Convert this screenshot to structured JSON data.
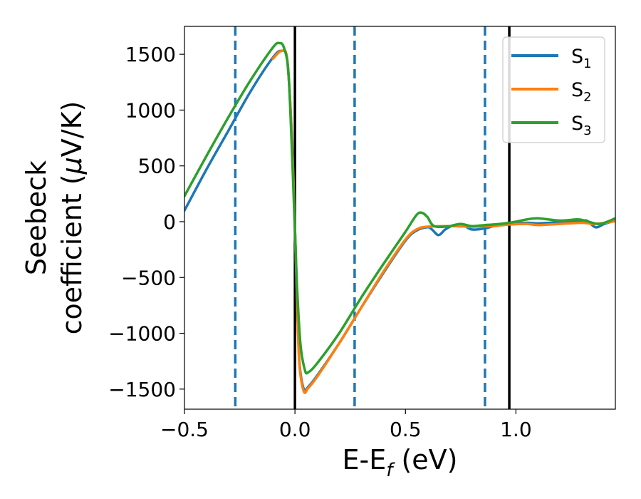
{
  "chart_data": {
    "type": "line",
    "title": "",
    "xlabel": "E-E_f (eV)",
    "xlabel_parts": {
      "main": "E-E",
      "sub": "f",
      "tail": " (eV)"
    },
    "ylabel_line1": "Seebeck",
    "ylabel_line2_main": "coefficient  (",
    "ylabel_line2_mu": "μ",
    "ylabel_line2_tail": "V/K)",
    "xlim": [
      -0.5,
      1.45
    ],
    "ylim": [
      -1680,
      1750
    ],
    "x_ticks": [
      -0.5,
      0.0,
      0.5,
      1.0
    ],
    "x_tick_labels": [
      "−0.5",
      "0.0",
      "0.5",
      "1.0"
    ],
    "y_ticks": [
      1500,
      1000,
      500,
      0,
      -500,
      -1000,
      -1500
    ],
    "y_tick_labels": [
      "1500",
      "1000",
      "500",
      "0",
      "−500",
      "−1000",
      "−1500"
    ],
    "grid": false,
    "legend_position": "top-right",
    "vlines_solid": [
      0.0,
      0.97
    ],
    "vlines_dashed": [
      -0.27,
      0.27,
      0.86
    ],
    "vline_solid_color": "#000000",
    "vline_dashed_color": "#1f77b4",
    "series": [
      {
        "name": "S",
        "sub": "1",
        "color": "#1f77b4",
        "points": [
          [
            -0.5,
            100
          ],
          [
            -0.4,
            470
          ],
          [
            -0.3,
            820
          ],
          [
            -0.2,
            1170
          ],
          [
            -0.1,
            1470
          ],
          [
            -0.06,
            1530
          ],
          [
            -0.035,
            1450
          ],
          [
            -0.015,
            800
          ],
          [
            0.0,
            -50
          ],
          [
            0.01,
            -700
          ],
          [
            0.02,
            -1250
          ],
          [
            0.04,
            -1500
          ],
          [
            0.06,
            -1480
          ],
          [
            0.1,
            -1380
          ],
          [
            0.2,
            -1090
          ],
          [
            0.3,
            -770
          ],
          [
            0.4,
            -460
          ],
          [
            0.5,
            -170
          ],
          [
            0.55,
            -80
          ],
          [
            0.6,
            -50
          ],
          [
            0.62,
            -70
          ],
          [
            0.65,
            -120
          ],
          [
            0.68,
            -70
          ],
          [
            0.72,
            -30
          ],
          [
            0.76,
            -30
          ],
          [
            0.8,
            -70
          ],
          [
            0.86,
            -60
          ],
          [
            0.9,
            -40
          ],
          [
            0.97,
            -20
          ],
          [
            1.05,
            -10
          ],
          [
            1.1,
            -15
          ],
          [
            1.2,
            -5
          ],
          [
            1.28,
            0
          ],
          [
            1.32,
            10
          ],
          [
            1.36,
            -50
          ],
          [
            1.4,
            -20
          ],
          [
            1.45,
            10
          ]
        ]
      },
      {
        "name": "S",
        "sub": "2",
        "color": "#ff7f0e",
        "points": [
          [
            -0.1,
            1460
          ],
          [
            -0.06,
            1530
          ],
          [
            -0.035,
            1450
          ],
          [
            -0.015,
            800
          ],
          [
            0.0,
            -60
          ],
          [
            0.01,
            -720
          ],
          [
            0.02,
            -1270
          ],
          [
            0.04,
            -1520
          ],
          [
            0.06,
            -1490
          ],
          [
            0.1,
            -1390
          ],
          [
            0.2,
            -1090
          ],
          [
            0.3,
            -770
          ],
          [
            0.4,
            -450
          ],
          [
            0.5,
            -160
          ],
          [
            0.55,
            -70
          ],
          [
            0.6,
            -45
          ],
          [
            0.7,
            -40
          ],
          [
            0.8,
            -45
          ],
          [
            0.86,
            -40
          ],
          [
            0.9,
            -40
          ],
          [
            0.97,
            -25
          ],
          [
            1.05,
            -20
          ],
          [
            1.1,
            -30
          ],
          [
            1.2,
            -20
          ],
          [
            1.3,
            -10
          ],
          [
            1.36,
            -20
          ],
          [
            1.45,
            5
          ]
        ]
      },
      {
        "name": "S",
        "sub": "3",
        "color": "#2ca02c",
        "points": [
          [
            -0.5,
            230
          ],
          [
            -0.4,
            590
          ],
          [
            -0.3,
            940
          ],
          [
            -0.2,
            1270
          ],
          [
            -0.1,
            1560
          ],
          [
            -0.07,
            1600
          ],
          [
            -0.05,
            1560
          ],
          [
            -0.03,
            1350
          ],
          [
            -0.015,
            700
          ],
          [
            0.0,
            -80
          ],
          [
            0.01,
            -600
          ],
          [
            0.025,
            -1100
          ],
          [
            0.045,
            -1330
          ],
          [
            0.06,
            -1350
          ],
          [
            0.1,
            -1270
          ],
          [
            0.2,
            -1000
          ],
          [
            0.3,
            -680
          ],
          [
            0.4,
            -380
          ],
          [
            0.5,
            -90
          ],
          [
            0.55,
            60
          ],
          [
            0.575,
            80
          ],
          [
            0.6,
            40
          ],
          [
            0.63,
            -40
          ],
          [
            0.7,
            -40
          ],
          [
            0.75,
            -20
          ],
          [
            0.8,
            -40
          ],
          [
            0.86,
            -30
          ],
          [
            0.9,
            -25
          ],
          [
            0.97,
            -10
          ],
          [
            1.05,
            20
          ],
          [
            1.1,
            30
          ],
          [
            1.2,
            10
          ],
          [
            1.28,
            20
          ],
          [
            1.32,
            5
          ],
          [
            1.38,
            -20
          ],
          [
            1.45,
            30
          ]
        ]
      }
    ]
  }
}
